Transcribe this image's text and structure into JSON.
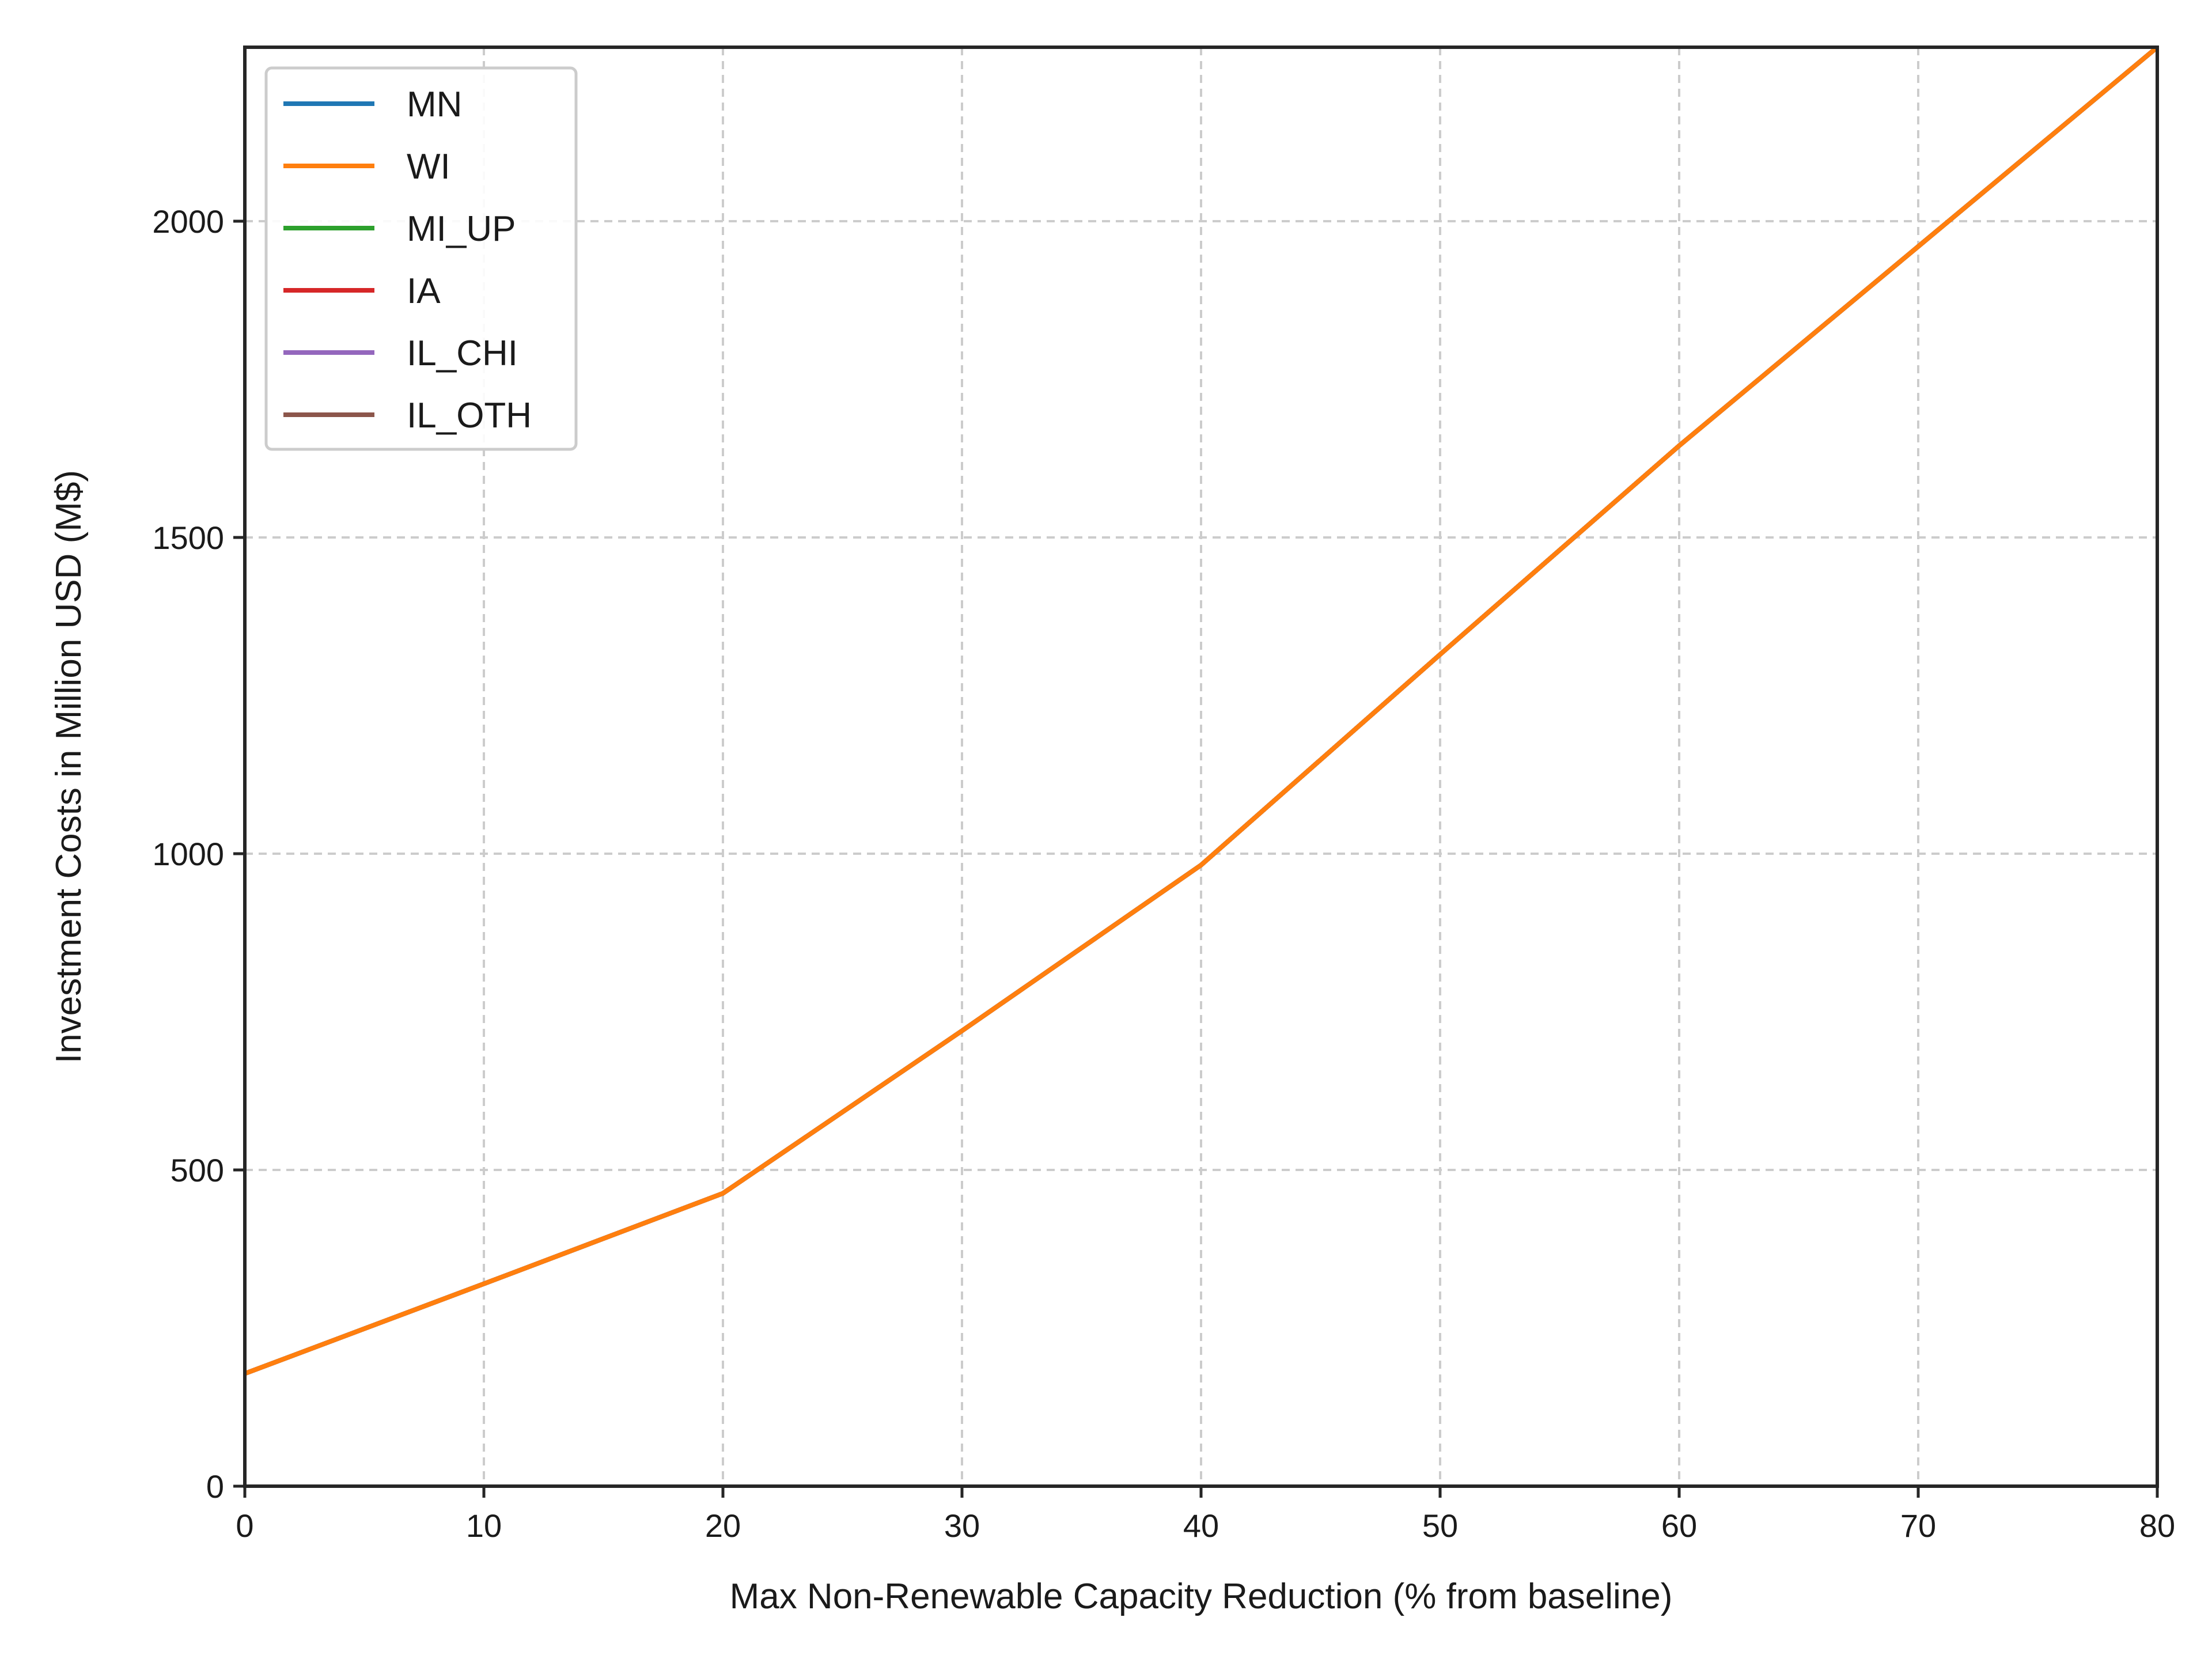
{
  "chart_data": {
    "type": "line",
    "title": "",
    "xlabel": "Max Non-Renewable Capacity Reduction (% from baseline)",
    "ylabel": "Investment Costs in Million USD (M$)",
    "xlim": [
      0,
      80
    ],
    "ylim": [
      0,
      2275
    ],
    "xticks": [
      0,
      10,
      20,
      30,
      40,
      50,
      60,
      70,
      80
    ],
    "yticks": [
      0,
      500,
      1000,
      1500,
      2000
    ],
    "grid": true,
    "legend_position": "top-left",
    "x": [
      0,
      10,
      20,
      30,
      40,
      50,
      60,
      70,
      80
    ],
    "series": [
      {
        "name": "MN",
        "color": "#1f77b4",
        "values": [
          178,
          320,
          463,
          720,
          982,
          1315,
          1645,
          1960,
          2275
        ]
      },
      {
        "name": "WI",
        "color": "#ff7f0e",
        "values": [
          178,
          320,
          463,
          720,
          982,
          1315,
          1645,
          1960,
          2275
        ]
      },
      {
        "name": "MI_UP",
        "color": "#2ca02c",
        "values": [
          178,
          320,
          463,
          720,
          982,
          1315,
          1645,
          1960,
          2275
        ]
      },
      {
        "name": "IA",
        "color": "#d62728",
        "values": [
          178,
          320,
          463,
          720,
          982,
          1315,
          1645,
          1960,
          2275
        ]
      },
      {
        "name": "IL_CHI",
        "color": "#9467bd",
        "values": [
          178,
          320,
          463,
          720,
          982,
          1315,
          1645,
          1960,
          2275
        ]
      },
      {
        "name": "IL_OTH",
        "color": "#8c564b",
        "values": [
          178,
          320,
          463,
          720,
          982,
          1315,
          1645,
          1960,
          2275
        ]
      }
    ],
    "draw_order": [
      "MN",
      "MI_UP",
      "IA",
      "IL_CHI",
      "IL_OTH",
      "WI"
    ]
  }
}
